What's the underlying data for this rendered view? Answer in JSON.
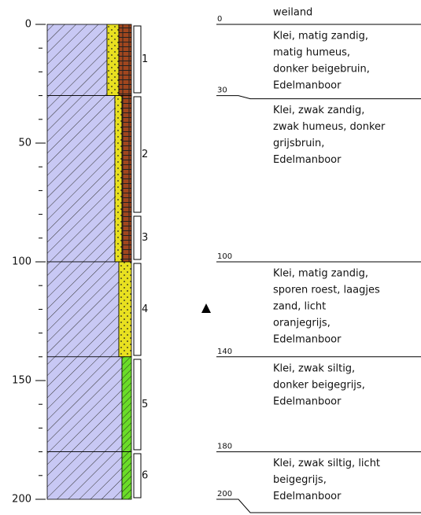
{
  "surface": "weiland",
  "depth_axis": {
    "ticks": [
      0,
      50,
      100,
      150,
      200
    ]
  },
  "boundaries": [
    0,
    30,
    100,
    140,
    180,
    200
  ],
  "layers": [
    {
      "lines": [
        "Klei, matig zandig,",
        "matig humeus,",
        "donker beigebruin,",
        "Edelmanboor"
      ]
    },
    {
      "lines": [
        "Klei, zwak zandig,",
        "zwak humeus, donker",
        "grijsbruin,",
        "Edelmanboor"
      ]
    },
    {
      "lines": [
        "Klei, matig zandig,",
        "sporen roest, laagjes",
        "zand, licht",
        "oranjegrijs,",
        "Edelmanboor"
      ]
    },
    {
      "lines": [
        "Klei, zwak siltig,",
        "donker beigegrijs,",
        "Edelmanboor"
      ]
    },
    {
      "lines": [
        "Klei, zwak siltig, licht",
        "beigegrijs,",
        "Edelmanboor"
      ]
    }
  ],
  "samples": [
    "1",
    "2",
    "3",
    "4",
    "5",
    "6"
  ]
}
